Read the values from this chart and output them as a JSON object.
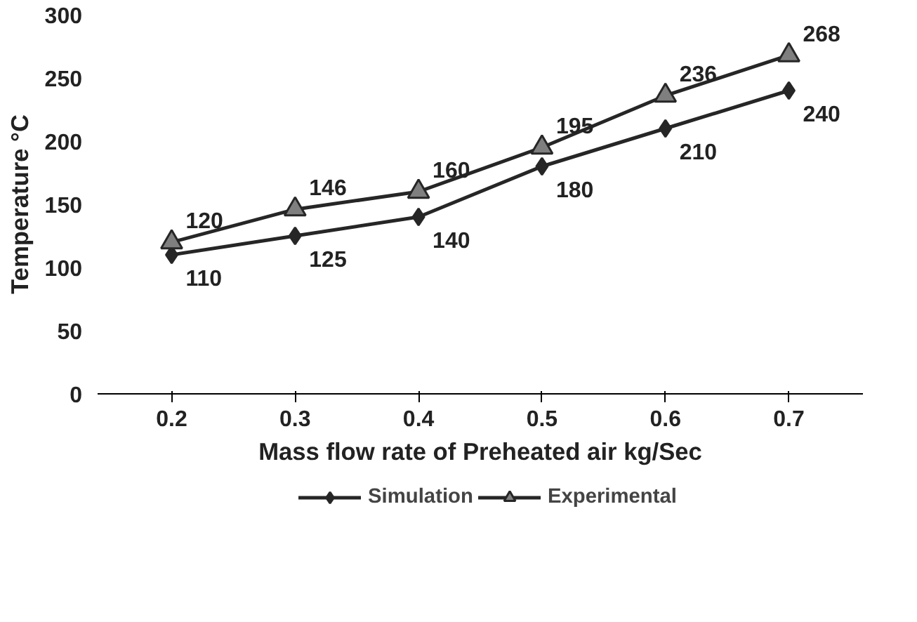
{
  "chart_data": {
    "type": "line",
    "xlabel": "Mass flow rate of Preheated air kg/Sec",
    "ylabel": "Temperature °C",
    "categories": [
      "0.2",
      "0.3",
      "0.4",
      "0.5",
      "0.6",
      "0.7"
    ],
    "series": [
      {
        "name": "Simulation",
        "color": "#262626",
        "marker": "diamond",
        "values": [
          110,
          125,
          140,
          180,
          210,
          240
        ]
      },
      {
        "name": "Experimental",
        "color": "#7f7f7f",
        "marker": "triangle",
        "values": [
          120,
          146,
          160,
          195,
          236,
          268
        ]
      }
    ],
    "ylim": [
      0,
      300
    ],
    "yticks": [
      0,
      50,
      100,
      150,
      200,
      250,
      300
    ],
    "grid": false,
    "legend": "bottom",
    "data_labels": true,
    "line_style": "solid"
  }
}
